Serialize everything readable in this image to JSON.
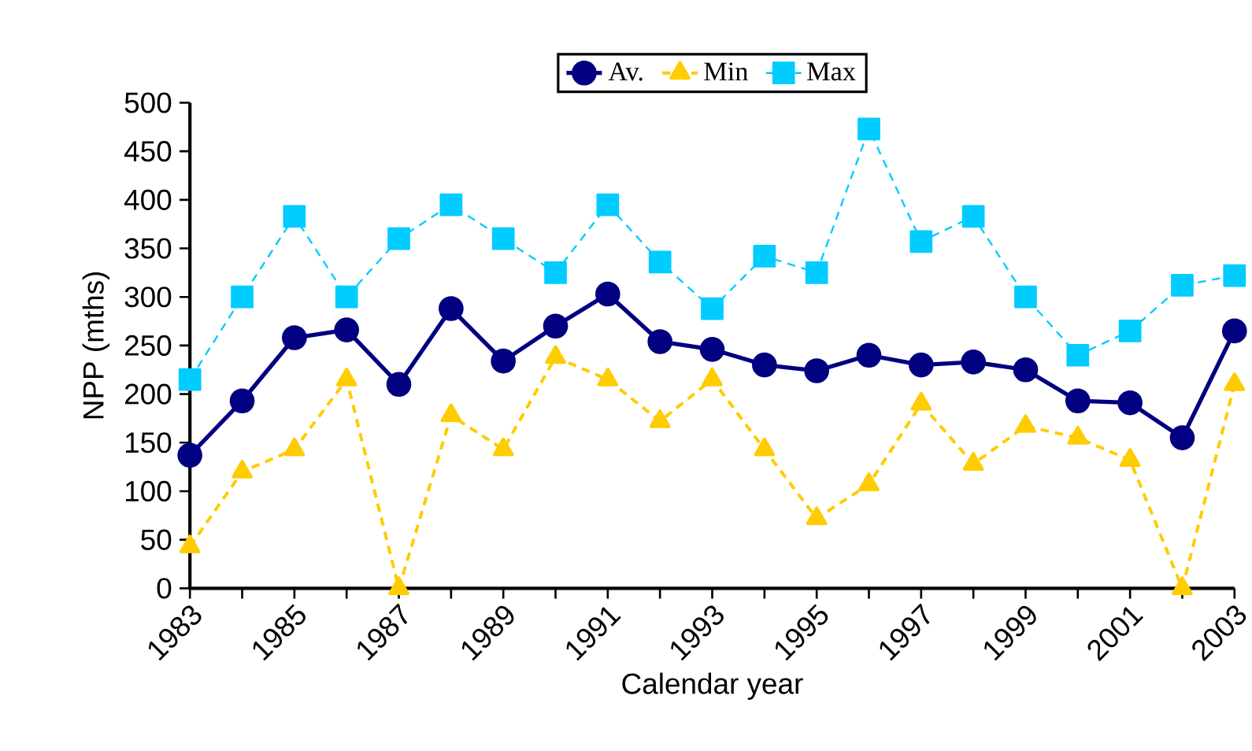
{
  "chart_data": {
    "type": "line",
    "xlabel": "Calendar year",
    "ylabel": "NPP (mths)",
    "x": [
      1983,
      1984,
      1985,
      1986,
      1987,
      1988,
      1989,
      1990,
      1991,
      1992,
      1993,
      1994,
      1995,
      1996,
      1997,
      1998,
      1999,
      2000,
      2001,
      2002,
      2003
    ],
    "series": [
      {
        "name": "Av.",
        "color": "#000080",
        "marker": "circle",
        "line_style": "solid",
        "values": [
          137,
          193,
          258,
          266,
          210,
          288,
          234,
          270,
          303,
          254,
          246,
          230,
          224,
          240,
          230,
          233,
          225,
          193,
          191,
          155,
          265
        ]
      },
      {
        "name": "Min",
        "color": "#ffcc00",
        "marker": "triangle",
        "line_style": "dashed",
        "values": [
          43,
          120,
          143,
          215,
          0,
          178,
          143,
          238,
          215,
          172,
          215,
          143,
          72,
          107,
          190,
          128,
          167,
          155,
          132,
          0,
          210
        ]
      },
      {
        "name": "Max",
        "color": "#00ccff",
        "marker": "square",
        "line_style": "dashed",
        "values": [
          215,
          300,
          383,
          300,
          360,
          395,
          360,
          325,
          395,
          336,
          288,
          342,
          325,
          473,
          357,
          383,
          300,
          240,
          265,
          312,
          322
        ]
      }
    ],
    "xlim": [
      1983,
      2003
    ],
    "xticks": [
      1983,
      {
        "value": 1984,
        "label": null
      },
      1985,
      {
        "value": 1986,
        "label": null
      },
      1987,
      {
        "value": 1988,
        "label": null
      },
      1989,
      {
        "value": 1990,
        "label": null
      },
      1991,
      {
        "value": 1992,
        "label": null
      },
      1993,
      {
        "value": 1994,
        "label": null
      },
      1995,
      {
        "value": 1996,
        "label": null
      },
      1997,
      {
        "value": 1998,
        "label": null
      },
      1999,
      {
        "value": 2000,
        "label": null
      },
      2001,
      {
        "value": 2002,
        "label": null
      },
      2003
    ],
    "ylim": [
      0,
      500
    ],
    "yticks": [
      0,
      50,
      100,
      150,
      200,
      250,
      300,
      350,
      400,
      450,
      500
    ],
    "grid": false,
    "legend": "top"
  }
}
